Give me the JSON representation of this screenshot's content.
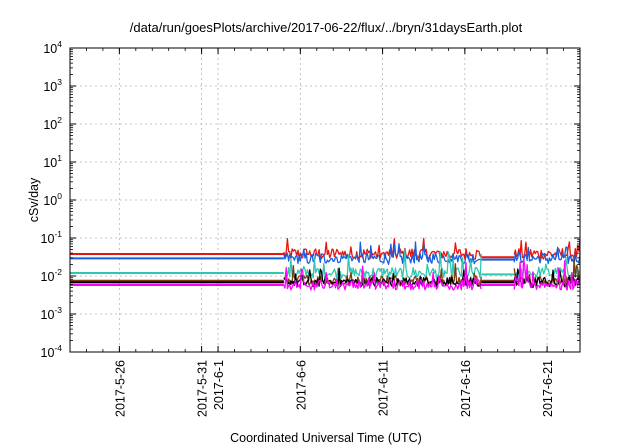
{
  "chart_data": {
    "type": "line",
    "title": "/data/run/goesPlots/archive/2017-06-22/flux/../bryn/31daysEarth.plot",
    "xlabel": "Coordinated Universal Time (UTC)",
    "ylabel": "cSv/day",
    "yscale": "log",
    "ylim": [
      0.0001,
      10000
    ],
    "xlim": [
      "2017-05-23",
      "2017-06-23"
    ],
    "grid": true,
    "legend": "none",
    "y_ticks": [
      {
        "value": 0.0001,
        "base": "10",
        "exp": "-4"
      },
      {
        "value": 0.001,
        "base": "10",
        "exp": "-3"
      },
      {
        "value": 0.01,
        "base": "10",
        "exp": "-2"
      },
      {
        "value": 0.1,
        "base": "10",
        "exp": "-1"
      },
      {
        "value": 1,
        "base": "10",
        "exp": "0"
      },
      {
        "value": 10,
        "base": "10",
        "exp": "1"
      },
      {
        "value": 100,
        "base": "10",
        "exp": "2"
      },
      {
        "value": 1000,
        "base": "10",
        "exp": "3"
      },
      {
        "value": 10000,
        "base": "10",
        "exp": "4"
      }
    ],
    "x_ticks": [
      {
        "date": "2017-05-26",
        "label": "2017-5-26"
      },
      {
        "date": "2017-05-31",
        "label": "2017-5-31"
      },
      {
        "date": "2017-06-01",
        "label": "2017-6-1"
      },
      {
        "date": "2017-06-06",
        "label": "2017-6-6"
      },
      {
        "date": "2017-06-11",
        "label": "2017-6-11"
      },
      {
        "date": "2017-06-16",
        "label": "2017-6-16"
      },
      {
        "date": "2017-06-21",
        "label": "2017-6-21"
      }
    ],
    "series": [
      {
        "color": "#e8140f",
        "baseline": 0.038,
        "peak": 0.1,
        "trough": 0.028,
        "segments": [
          {
            "start": "2017-05-23",
            "end": "2017-06-05",
            "kind": "flat",
            "value": 0.038
          },
          {
            "start": "2017-06-05",
            "end": "2017-06-17",
            "kind": "noisy"
          },
          {
            "start": "2017-06-17",
            "end": "2017-06-19",
            "kind": "flat",
            "value": 0.031
          },
          {
            "start": "2017-06-19",
            "end": "2017-06-23",
            "kind": "noisy"
          }
        ]
      },
      {
        "color": "#1560e0",
        "baseline": 0.029,
        "peak": 0.085,
        "trough": 0.02,
        "segments": [
          {
            "start": "2017-05-23",
            "end": "2017-06-05",
            "kind": "flat",
            "value": 0.029
          },
          {
            "start": "2017-06-05",
            "end": "2017-06-17",
            "kind": "noisy"
          },
          {
            "start": "2017-06-17",
            "end": "2017-06-19",
            "kind": "flat",
            "value": 0.027
          },
          {
            "start": "2017-06-19",
            "end": "2017-06-23",
            "kind": "noisy"
          }
        ]
      },
      {
        "color": "#2ec8b0",
        "baseline": 0.012,
        "peak": 0.05,
        "trough": 0.008,
        "segments": [
          {
            "start": "2017-05-23",
            "end": "2017-06-05",
            "kind": "flat",
            "value": 0.012
          },
          {
            "start": "2017-06-05",
            "end": "2017-06-17",
            "kind": "noisy"
          },
          {
            "start": "2017-06-17",
            "end": "2017-06-19",
            "kind": "flat",
            "value": 0.011
          },
          {
            "start": "2017-06-19",
            "end": "2017-06-23",
            "kind": "noisy"
          }
        ]
      },
      {
        "color": "#7a3c14",
        "baseline": 0.0075,
        "peak": 0.028,
        "trough": 0.006,
        "segments": [
          {
            "start": "2017-05-23",
            "end": "2017-06-05",
            "kind": "flat",
            "value": 0.0075
          },
          {
            "start": "2017-06-05",
            "end": "2017-06-17",
            "kind": "noisy"
          },
          {
            "start": "2017-06-17",
            "end": "2017-06-19",
            "kind": "flat",
            "value": 0.0075
          },
          {
            "start": "2017-06-19",
            "end": "2017-06-23",
            "kind": "noisy"
          }
        ]
      },
      {
        "color": "#000000",
        "baseline": 0.0068,
        "peak": 0.022,
        "trough": 0.0058,
        "segments": [
          {
            "start": "2017-05-23",
            "end": "2017-06-05",
            "kind": "flat",
            "value": 0.0068
          },
          {
            "start": "2017-06-05",
            "end": "2017-06-17",
            "kind": "noisy"
          },
          {
            "start": "2017-06-17",
            "end": "2017-06-19",
            "kind": "flat",
            "value": 0.0068
          },
          {
            "start": "2017-06-19",
            "end": "2017-06-23",
            "kind": "noisy"
          }
        ]
      },
      {
        "color": "#ff00ff",
        "baseline": 0.0058,
        "peak": 0.03,
        "trough": 0.005,
        "segments": [
          {
            "start": "2017-05-23",
            "end": "2017-06-05",
            "kind": "flat",
            "value": 0.0058
          },
          {
            "start": "2017-06-05",
            "end": "2017-06-17",
            "kind": "noisy"
          },
          {
            "start": "2017-06-17",
            "end": "2017-06-19",
            "kind": "flat",
            "value": 0.0058
          },
          {
            "start": "2017-06-19",
            "end": "2017-06-23",
            "kind": "noisy"
          }
        ]
      }
    ]
  }
}
